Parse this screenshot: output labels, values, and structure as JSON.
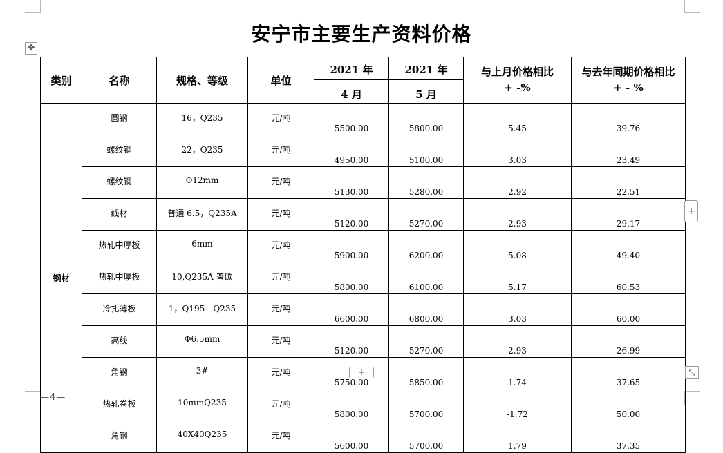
{
  "title": "安宁市主要生产资料价格",
  "page_number": "—4—",
  "controls": {
    "move_icon": "✥",
    "add_column_icon": "+",
    "add_row_icon": "+",
    "resize_icon": "⤡"
  },
  "headers": {
    "category": "类别",
    "name": "名称",
    "spec": "规格、等级",
    "unit": "单位",
    "year1": "2021 年",
    "month1": "4 月",
    "year2": "2021 年",
    "month2": "5 月",
    "mom_line1": "与上月价格相比",
    "mom_line2": "+ -%",
    "yoy_line1": "与去年同期价格相比",
    "yoy_line2": "+ - %"
  },
  "category": "钢材",
  "rows": [
    {
      "name": "圆钢",
      "spec": "16，Q235",
      "unit": "元/吨",
      "apr": "5500.00",
      "may": "5800.00",
      "mom": "5.45",
      "yoy": "39.76"
    },
    {
      "name": "螺纹钢",
      "spec": "22，Q235",
      "unit": "元/吨",
      "apr": "4950.00",
      "may": "5100.00",
      "mom": "3.03",
      "yoy": "23.49"
    },
    {
      "name": "螺纹钢",
      "spec": "Φ12mm",
      "unit": "元/吨",
      "apr": "5130.00",
      "may": "5280.00",
      "mom": "2.92",
      "yoy": "22.51"
    },
    {
      "name": "线材",
      "spec": "普通 6.5，Q235A",
      "unit": "元/吨",
      "apr": "5120.00",
      "may": "5270.00",
      "mom": "2.93",
      "yoy": "29.17"
    },
    {
      "name": "热轧中厚板",
      "spec": "6mm",
      "unit": "元/吨",
      "apr": "5900.00",
      "may": "6200.00",
      "mom": "5.08",
      "yoy": "49.40"
    },
    {
      "name": "热轧中厚板",
      "spec": "10,Q235A 普碳",
      "unit": "元/吨",
      "apr": "5800.00",
      "may": "6100.00",
      "mom": "5.17",
      "yoy": "60.53"
    },
    {
      "name": "冷扎薄板",
      "spec": "1，Q195---Q235",
      "unit": "元/吨",
      "apr": "6600.00",
      "may": "6800.00",
      "mom": "3.03",
      "yoy": "60.00"
    },
    {
      "name": "高线",
      "spec": "Φ6.5mm",
      "unit": "元/吨",
      "apr": "5120.00",
      "may": "5270.00",
      "mom": "2.93",
      "yoy": "26.99"
    },
    {
      "name": "角钢",
      "spec": "3#",
      "unit": "元/吨",
      "apr": "5750.00",
      "may": "5850.00",
      "mom": "1.74",
      "yoy": "37.65"
    },
    {
      "name": "热轧卷板",
      "spec": "10mmQ235",
      "unit": "元/吨",
      "apr": "5800.00",
      "may": "5700.00",
      "mom": "-1.72",
      "yoy": "50.00"
    },
    {
      "name": "角钢",
      "spec": "40X40Q235",
      "unit": "元/吨",
      "apr": "5600.00",
      "may": "5700.00",
      "mom": "1.79",
      "yoy": "37.35"
    }
  ]
}
